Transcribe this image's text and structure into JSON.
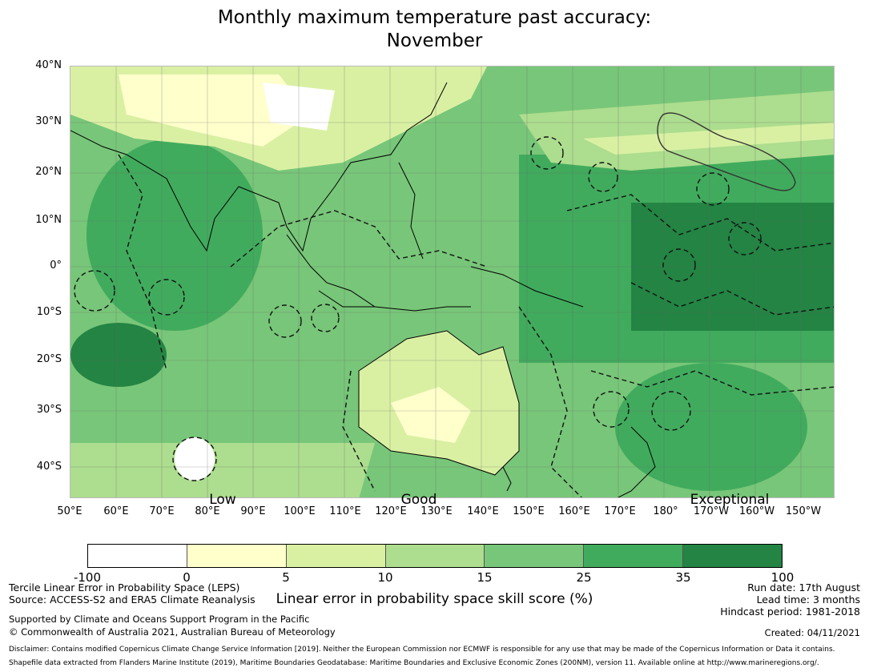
{
  "title_line1": "Monthly maximum temperature past accuracy:",
  "title_line2": "November",
  "lat_labels": [
    "40°N",
    "30°N",
    "20°N",
    "10°N",
    "0°",
    "10°S",
    "20°S",
    "30°S",
    "40°S"
  ],
  "lon_labels": [
    "50°E",
    "60°E",
    "70°E",
    "80°E",
    "90°E",
    "100°E",
    "110°E",
    "120°E",
    "130°E",
    "140°E",
    "150°E",
    "160°E",
    "170°E",
    "180°",
    "170°W",
    "160°W",
    "150°W"
  ],
  "categories": [
    "Low",
    "Good",
    "Exceptional"
  ],
  "legend": {
    "bins": [
      {
        "from": -100,
        "to": 0,
        "color": "#ffffff"
      },
      {
        "from": 0,
        "to": 5,
        "color": "#ffffcc"
      },
      {
        "from": 5,
        "to": 10,
        "color": "#d9f0a3"
      },
      {
        "from": 10,
        "to": 15,
        "color": "#addd8e"
      },
      {
        "from": 15,
        "to": 25,
        "color": "#78c679"
      },
      {
        "from": 25,
        "to": 35,
        "color": "#41ab5d"
      },
      {
        "from": 35,
        "to": 100,
        "color": "#238443"
      }
    ],
    "ticks": [
      "-100",
      "0",
      "5",
      "10",
      "15",
      "25",
      "35",
      "100"
    ],
    "label": "Linear error in probability space skill score (%)"
  },
  "info_left": {
    "line1": "Tercile Linear Error in Probability Space (LEPS)",
    "line2": "Source: ACCESS-S2 and ERA5 Climate Reanalysis",
    "line3": "Supported by Climate and Oceans Support Program in the Pacific",
    "line4": "© Commonwealth of Australia 2021, Australian Bureau of Meteorology"
  },
  "info_right": {
    "run_date": "Run date: 17th August",
    "lead_time": "Lead time: 3 months",
    "hindcast": "Hindcast period: 1981-2018",
    "created": "Created: 04/11/2021"
  },
  "disclaimer": "Disclaimer: Contains modified Copernicus Climate Change Service Information [2019]. Neither the European Commission nor ECMWF is responsible for any use that may be made of the Copernicus Information or Data it contains.",
  "shapefile_note": "Shapefile data extracted from Flanders Marine Institute (2019), Maritime Boundaries Geodatabase: Maritime Boundaries and Exclusive Economic Zones (200NM), version 11. Available online at http://www.marineregions.org/."
}
